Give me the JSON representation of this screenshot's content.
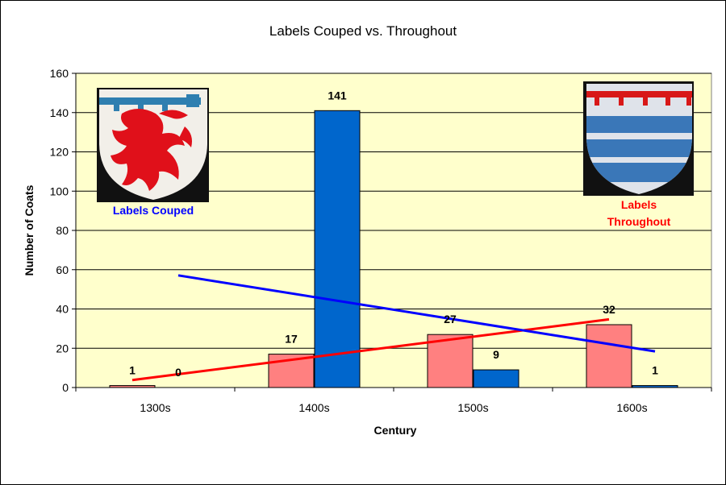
{
  "chart_data": {
    "type": "bar",
    "title": "Labels Couped vs. Throughout",
    "xlabel": "Century",
    "ylabel": "Number of Coats",
    "categories": [
      "1300s",
      "1400s",
      "1500s",
      "1600s"
    ],
    "ylim": [
      0,
      160
    ],
    "yticks": [
      0,
      20,
      40,
      60,
      80,
      100,
      120,
      140,
      160
    ],
    "grid": true,
    "series": [
      {
        "name": "Labels Throughout",
        "values": [
          1,
          17,
          27,
          32
        ],
        "color": "#ff8080",
        "trendline_color": "#ff0000"
      },
      {
        "name": "Labels Couped",
        "values": [
          0,
          141,
          9,
          1
        ],
        "color": "#0066cc",
        "trendline_color": "#0000ff"
      }
    ],
    "plot_background": "#ffffcc",
    "legend": [
      {
        "text": "Labels Couped",
        "color": "#0000ff",
        "image": "shield-red-lion-blue-label"
      },
      {
        "text": [
          "Labels",
          "Throughout"
        ],
        "color": "#ff0000",
        "image": "shield-blue-white-bars-red-label"
      }
    ]
  }
}
